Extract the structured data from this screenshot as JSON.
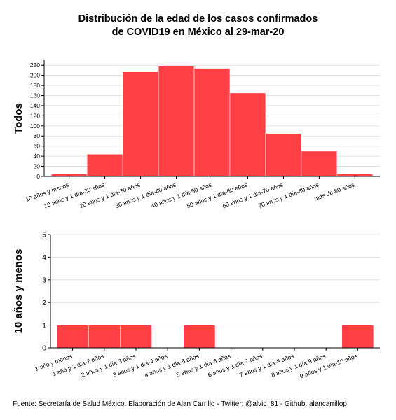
{
  "title_line1": "Distribución de la edad de los casos confirmados",
  "title_line2": "de COVID19 en México al 29-mar-20",
  "footer": "Fuente: Secretaría de Salud México. Elaboración de Alan Carrillo - Twitter: @alvic_81 - Github: alancarrillop",
  "colors": {
    "bar": "#FF3E46",
    "grid": "#d9d9d9",
    "axis": "#000000"
  },
  "chart_data": [
    {
      "type": "bar",
      "title": "",
      "xlabel": "",
      "ylabel": "Todos",
      "ylim": [
        0,
        230
      ],
      "yticks": [
        0,
        20,
        40,
        60,
        80,
        100,
        120,
        140,
        160,
        180,
        200,
        220
      ],
      "grid": true,
      "categories": [
        "10 años y menos",
        "10 años y 1 día-20 años",
        "20 años y 1 día-30 años",
        "30 años y 1 día-40 años",
        "40 años y 1 día-50 años",
        "50 años y 1 día-60 años",
        "60 años y 1 día-70 años",
        "70 años y 1 día-80 años",
        "más de 80 años"
      ],
      "values": [
        5,
        44,
        207,
        218,
        214,
        165,
        85,
        50,
        5
      ]
    },
    {
      "type": "bar",
      "title": "",
      "xlabel": "",
      "ylabel": "10 años y menos",
      "ylim": [
        0,
        5
      ],
      "yticks": [
        0,
        1,
        2,
        3,
        4,
        5
      ],
      "grid": true,
      "categories": [
        "1 año y menos",
        "1 año y 1 día-2 años",
        "2 años y 1 día-3 años",
        "3 años y 1 día-4 años",
        "4 años y 1 día-5 años",
        "5 años y 1 día-6 años",
        "6 años y 1 día-7 años",
        "7 años y 1 día-8 años",
        "8 años y 1 día-9 años",
        "9 años y 1 día-10 años"
      ],
      "values": [
        1,
        1,
        1,
        0,
        1,
        0,
        0,
        0,
        0,
        1
      ]
    }
  ]
}
